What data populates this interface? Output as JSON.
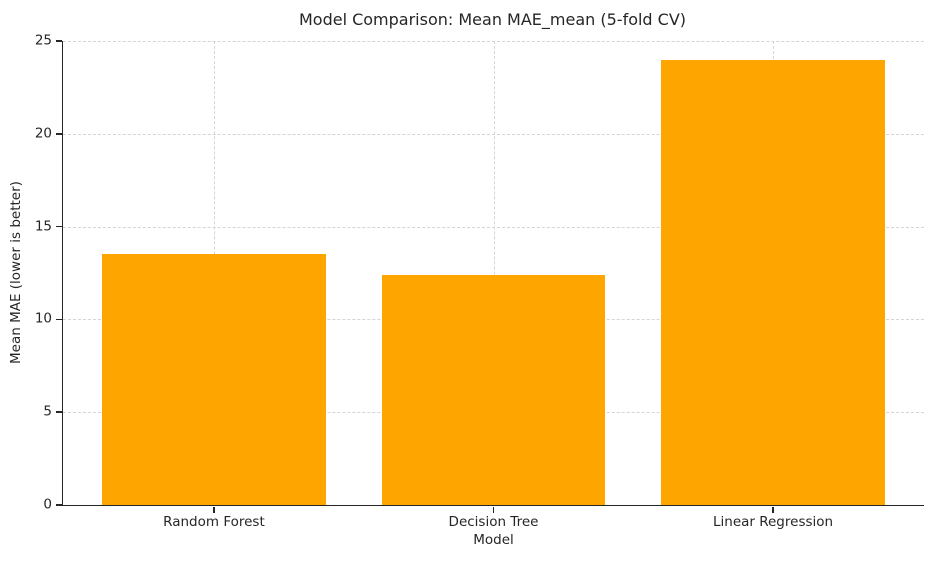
{
  "figure": {
    "background": "#ffffff",
    "text_color": "#262626",
    "grid_color": "#d5d5d5",
    "spine_color": "#262626"
  },
  "chart_data": {
    "type": "bar",
    "title": "Model Comparison: Mean MAE_mean (5-fold CV)",
    "xlabel": "Model",
    "ylabel": "Mean MAE (lower is better)",
    "categories": [
      "Random Forest",
      "Decision Tree",
      "Linear Regression"
    ],
    "values": [
      13.55,
      12.4,
      24.0
    ],
    "bar_color": "#FFA500",
    "ylim": [
      0,
      25
    ],
    "yticks": [
      0,
      5,
      10,
      15,
      20,
      25
    ],
    "bar_width": 0.8,
    "grid": "dashed",
    "grid_axes": "both",
    "legend": "none",
    "spines": [
      "left",
      "bottom"
    ]
  }
}
